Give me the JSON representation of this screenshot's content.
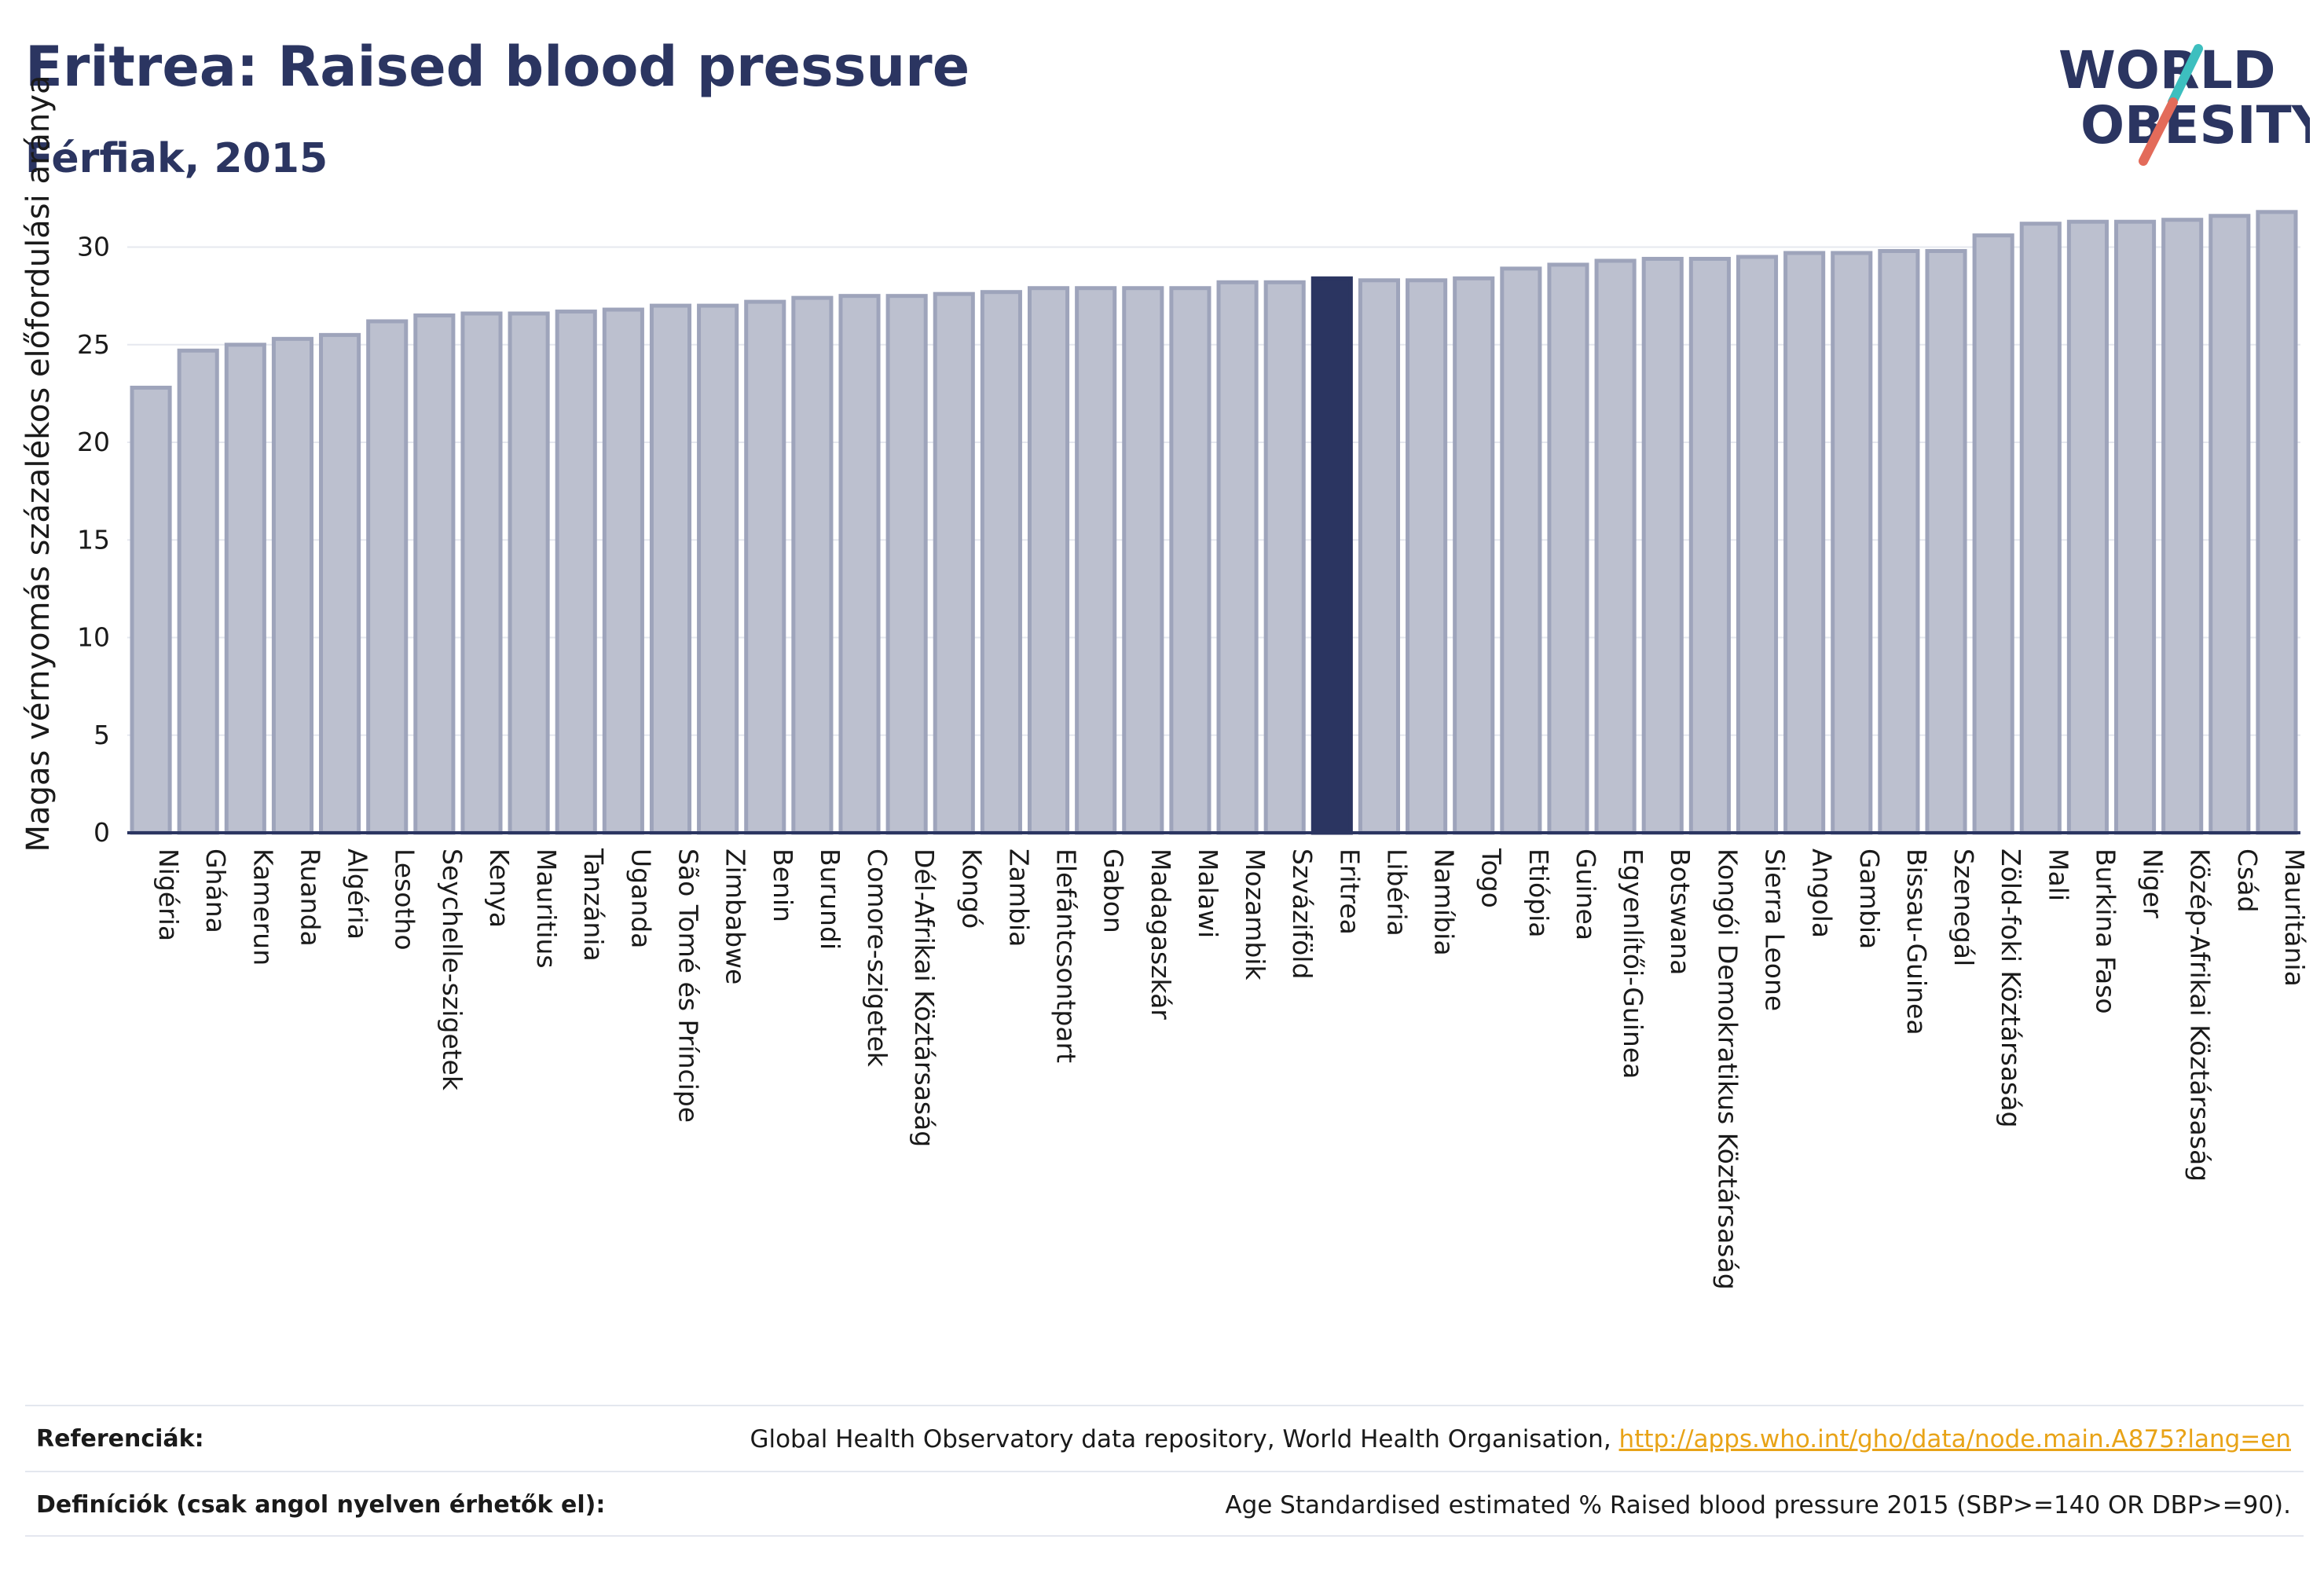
{
  "header": {
    "title": "Eritrea: Raised blood pressure",
    "subtitle": "Férfiak, 2015"
  },
  "logo": {
    "line1": "WORLD",
    "line2": "OBESITY",
    "colors": {
      "text": "#2b3561",
      "slash_teal": "#3dbfbf",
      "slash_coral": "#e36b5a"
    }
  },
  "chart_data": {
    "type": "bar",
    "ylabel": "Magas vérnyomás százalékos előfordulási aránya",
    "xlabel": "",
    "ylim": [
      0,
      33
    ],
    "yticks": [
      0,
      5,
      10,
      15,
      20,
      25,
      30
    ],
    "grid": true,
    "highlight": "Eritrea",
    "colors": {
      "bar": "#bcc0cf",
      "bar_edge": "#9ea4bb",
      "highlight": "#2b3561",
      "axis": "#2b3561",
      "grid": "#e6e8ef"
    },
    "categories": [
      "Nigéria",
      "Ghána",
      "Kamerun",
      "Ruanda",
      "Algéria",
      "Lesotho",
      "Seychelle-szigetek",
      "Kenya",
      "Mauritius",
      "Tanzánia",
      "Uganda",
      "São Tomé és Príncipe",
      "Zimbabwe",
      "Benin",
      "Burundi",
      "Comore-szigetek",
      "Dél-Afrikai Köztársaság",
      "Kongó",
      "Zambia",
      "Elefántcsontpart",
      "Gabon",
      "Madagaszkár",
      "Malawi",
      "Mozambik",
      "Szváziföld",
      "Eritrea",
      "Libéria",
      "Namíbia",
      "Togo",
      "Etiópia",
      "Guinea",
      "Egyenlítői-Guinea",
      "Botswana",
      "Kongói Demokratikus Köztársaság",
      "Sierra Leone",
      "Angola",
      "Gambia",
      "Bissau-Guinea",
      "Szenegál",
      "Zöld-foki Köztársaság",
      "Mali",
      "Burkina Faso",
      "Niger",
      "Közép-Afrikai Köztársaság",
      "Csád",
      "Mauritánia"
    ],
    "values": [
      22.8,
      24.7,
      25.0,
      25.3,
      25.5,
      26.2,
      26.5,
      26.6,
      26.6,
      26.7,
      26.8,
      27.0,
      27.0,
      27.2,
      27.4,
      27.5,
      27.5,
      27.6,
      27.7,
      27.9,
      27.9,
      27.9,
      27.9,
      28.2,
      28.2,
      28.4,
      28.3,
      28.3,
      28.4,
      28.9,
      29.1,
      29.3,
      29.4,
      29.4,
      29.5,
      29.7,
      29.7,
      29.8,
      29.8,
      30.6,
      31.2,
      31.3,
      31.3,
      31.4,
      31.6,
      31.8
    ]
  },
  "footer": {
    "references_label": "Referenciák:",
    "references_text": "Global Health Observatory data repository, World Health Organisation, ",
    "references_link": "http://apps.who.int/gho/data/node.main.A875?lang=en",
    "definitions_label": "Definíciók (csak angol nyelven érhetők el):",
    "definitions_text": "Age Standardised estimated % Raised blood pressure 2015 (SBP>=140 OR DBP>=90)."
  }
}
